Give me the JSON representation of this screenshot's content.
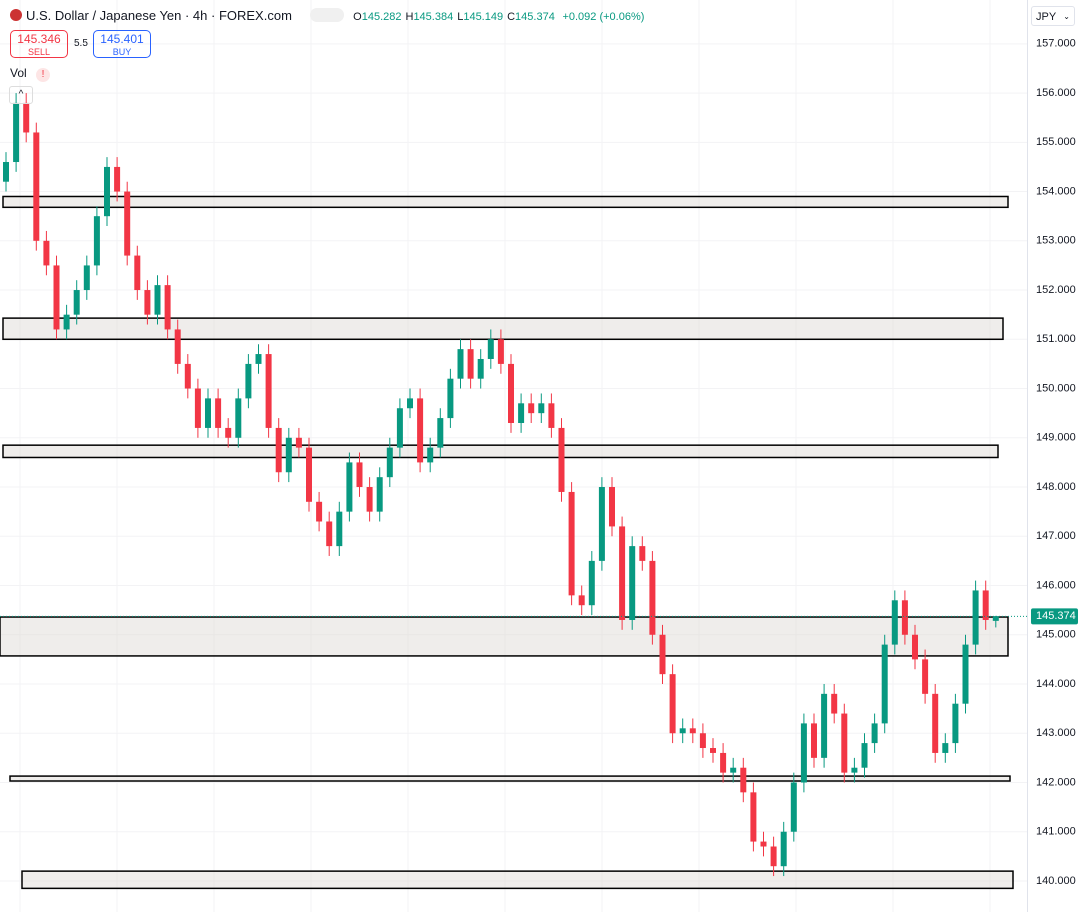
{
  "chart_data": {
    "type": "candlestick",
    "title": "U.S. Dollar / Japanese Yen · 4h · FOREX.com",
    "ohlc_legend": [
      {
        "label": "O",
        "value": "145.282"
      },
      {
        "label": "H",
        "value": "145.384"
      },
      {
        "label": "L",
        "value": "145.149"
      },
      {
        "label": "C",
        "value": "145.374"
      }
    ],
    "change": "+0.092 (+0.06%)",
    "sell": {
      "price": "145.346",
      "label": "SELL"
    },
    "spread": "5.5",
    "buy": {
      "price": "145.401",
      "label": "BUY"
    },
    "volume_label": "Vol",
    "currency": "JPY",
    "up_color": "#089981",
    "down_color": "#f23645",
    "grid": true,
    "ylim": [
      139.37,
      157.89
    ],
    "yticks": [
      {
        "value": 140,
        "label": "140.000"
      },
      {
        "value": 141,
        "label": "141.000"
      },
      {
        "value": 142,
        "label": "142.000"
      },
      {
        "value": 143,
        "label": "143.000"
      },
      {
        "value": 144,
        "label": "144.000"
      },
      {
        "value": 145,
        "label": "145.000"
      },
      {
        "value": 146,
        "label": "146.000"
      },
      {
        "value": 147,
        "label": "147.000"
      },
      {
        "value": 148,
        "label": "148.000"
      },
      {
        "value": 149,
        "label": "149.000"
      },
      {
        "value": 150,
        "label": "150.000"
      },
      {
        "value": 151,
        "label": "151.000"
      },
      {
        "value": 152,
        "label": "152.000"
      },
      {
        "value": 153,
        "label": "153.000"
      },
      {
        "value": 154,
        "label": "154.000"
      },
      {
        "value": 155,
        "label": "155.000"
      },
      {
        "value": 156,
        "label": "156.000"
      },
      {
        "value": 157,
        "label": "157.000"
      }
    ],
    "last_price": 145.374,
    "zones": [
      {
        "from": 153.68,
        "to": 153.9
      },
      {
        "from": 151.0,
        "to": 151.43
      },
      {
        "from": 148.6,
        "to": 148.85
      },
      {
        "from": 144.57,
        "to": 145.36
      },
      {
        "from": 142.03,
        "to": 142.13
      },
      {
        "from": 139.85,
        "to": 140.2
      }
    ],
    "open": [
      154.2,
      154.6,
      155.8,
      155.2,
      153.0,
      152.5,
      151.2,
      151.5,
      152.0,
      152.5,
      153.5,
      154.5,
      154.0,
      152.7,
      152.0,
      151.5,
      152.1,
      151.2,
      150.5,
      150.0,
      149.2,
      149.8,
      149.2,
      149.0,
      149.8,
      150.5,
      150.7,
      149.2,
      148.3,
      149.0,
      148.8,
      147.7,
      147.3,
      146.8,
      147.5,
      148.5,
      148.0,
      147.5,
      148.2,
      148.8,
      149.6,
      149.8,
      148.5,
      148.8,
      149.4,
      150.2,
      150.8,
      150.2,
      150.6,
      151.0,
      150.5,
      149.3,
      149.7,
      149.5,
      149.7,
      149.2,
      147.9,
      145.8,
      145.6,
      146.5,
      148.0,
      147.2,
      145.3,
      146.8,
      146.5,
      145.0,
      144.2,
      143.0,
      143.1,
      143.0,
      142.7,
      142.6,
      142.2,
      142.3,
      141.8,
      140.8,
      140.7,
      140.3,
      141.0,
      142.0,
      143.2,
      142.5,
      143.8,
      143.4,
      142.2,
      142.3,
      142.8,
      143.2,
      144.8,
      145.7,
      145.0,
      144.5,
      143.8,
      142.6,
      142.8,
      143.6,
      144.8,
      145.9,
      145.282
    ],
    "high": [
      154.8,
      156.0,
      156.0,
      155.4,
      153.2,
      152.7,
      151.7,
      152.2,
      152.7,
      153.7,
      154.7,
      154.7,
      154.2,
      152.9,
      152.2,
      152.3,
      152.3,
      151.4,
      150.7,
      150.2,
      150.0,
      150.0,
      149.4,
      150.0,
      150.7,
      150.9,
      150.9,
      149.4,
      149.2,
      149.2,
      149.0,
      147.9,
      147.5,
      147.7,
      148.7,
      148.7,
      148.2,
      148.4,
      149.0,
      149.8,
      150.0,
      150.0,
      149.0,
      149.6,
      150.4,
      151.0,
      151.0,
      150.8,
      151.2,
      151.2,
      150.7,
      149.9,
      149.9,
      149.9,
      149.9,
      149.4,
      148.1,
      146.0,
      146.7,
      148.2,
      148.2,
      147.4,
      147.0,
      147.0,
      146.7,
      145.2,
      144.4,
      143.3,
      143.3,
      143.2,
      142.9,
      142.8,
      142.5,
      142.5,
      142.0,
      141.0,
      140.9,
      141.2,
      142.2,
      143.4,
      143.4,
      144.0,
      144.0,
      143.6,
      142.5,
      143.0,
      143.4,
      145.0,
      145.9,
      145.9,
      145.2,
      144.7,
      144.0,
      143.0,
      143.8,
      145.0,
      146.1,
      146.1,
      145.384
    ],
    "low": [
      154.0,
      154.4,
      155.0,
      152.8,
      152.3,
      151.0,
      151.0,
      151.3,
      151.8,
      152.3,
      153.3,
      153.8,
      152.5,
      151.8,
      151.3,
      151.3,
      151.0,
      150.3,
      149.8,
      149.0,
      149.0,
      149.0,
      148.8,
      148.8,
      149.6,
      150.3,
      149.0,
      148.1,
      148.1,
      148.6,
      147.5,
      147.1,
      146.6,
      146.6,
      147.3,
      147.8,
      147.3,
      147.3,
      148.0,
      148.6,
      149.4,
      148.3,
      148.3,
      148.6,
      149.2,
      150.0,
      150.0,
      150.0,
      150.4,
      150.3,
      149.1,
      149.1,
      149.3,
      149.3,
      149.0,
      147.7,
      145.6,
      145.4,
      145.4,
      146.3,
      147.0,
      145.1,
      145.1,
      146.3,
      144.8,
      144.0,
      142.8,
      142.8,
      142.8,
      142.5,
      142.4,
      142.0,
      142.0,
      141.6,
      140.6,
      140.5,
      140.1,
      140.1,
      140.8,
      141.8,
      142.3,
      142.3,
      143.2,
      142.0,
      142.0,
      142.1,
      142.6,
      143.0,
      144.6,
      144.8,
      144.3,
      143.6,
      142.4,
      142.4,
      142.6,
      143.4,
      144.6,
      145.1,
      145.149
    ],
    "close": [
      154.6,
      155.8,
      155.2,
      153.0,
      152.5,
      151.2,
      151.5,
      152.0,
      152.5,
      153.5,
      154.5,
      154.0,
      152.7,
      152.0,
      151.5,
      152.1,
      151.2,
      150.5,
      150.0,
      149.2,
      149.8,
      149.2,
      149.0,
      149.8,
      150.5,
      150.7,
      149.2,
      148.3,
      149.0,
      148.8,
      147.7,
      147.3,
      146.8,
      147.5,
      148.5,
      148.0,
      147.5,
      148.2,
      148.8,
      149.6,
      149.8,
      148.5,
      148.8,
      149.4,
      150.2,
      150.8,
      150.2,
      150.6,
      151.0,
      150.5,
      149.3,
      149.7,
      149.5,
      149.7,
      149.2,
      147.9,
      145.8,
      145.6,
      146.5,
      148.0,
      147.2,
      145.3,
      146.8,
      146.5,
      145.0,
      144.2,
      143.0,
      143.1,
      143.0,
      142.7,
      142.6,
      142.2,
      142.3,
      141.8,
      140.8,
      140.7,
      140.3,
      141.0,
      142.0,
      143.2,
      142.5,
      143.8,
      143.4,
      142.2,
      142.3,
      142.8,
      143.2,
      144.8,
      145.7,
      145.0,
      144.5,
      143.8,
      142.6,
      142.8,
      143.6,
      144.8,
      145.9,
      145.3,
      145.374
    ]
  }
}
